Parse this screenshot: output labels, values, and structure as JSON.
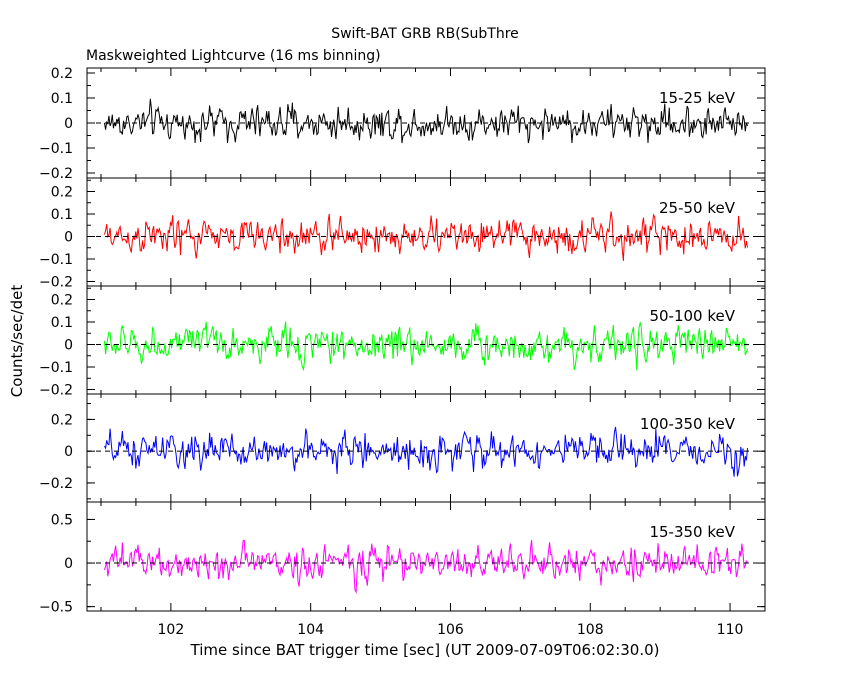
{
  "chart_data": {
    "type": "line",
    "title": "Swift-BAT GRB RB(SubThre",
    "subtitle": "Maskweighted Lightcurve (16 ms binning)",
    "xlabel": "Time since BAT trigger time [sec] (UT 2009-07-09T06:02:30.0)",
    "ylabel": "Counts/sec/det",
    "xlim": [
      100.8,
      110.5
    ],
    "x_ticks": [
      "102",
      "104",
      "106",
      "108",
      "110"
    ],
    "x_start": 101.05,
    "x_end": 110.25,
    "bin_width": 0.016,
    "grid": false,
    "panels": [
      {
        "name": "15-25 keV",
        "color": "#000000",
        "ylim": [
          -0.22,
          0.22
        ],
        "y_ticks": [
          "0.2",
          "0.1",
          "0",
          "−0.1",
          "−0.2"
        ],
        "y_tick_values": [
          0.2,
          0.1,
          0,
          -0.1,
          -0.2
        ],
        "amplitude": 0.07
      },
      {
        "name": "25-50 keV",
        "color": "#ff0000",
        "ylim": [
          -0.22,
          0.26
        ],
        "y_ticks": [
          "0.2",
          "0.1",
          "0",
          "−0.1",
          "−0.2"
        ],
        "y_tick_values": [
          0.2,
          0.1,
          0,
          -0.1,
          -0.2
        ],
        "amplitude": 0.08
      },
      {
        "name": "50-100 keV",
        "color": "#00ff00",
        "ylim": [
          -0.22,
          0.26
        ],
        "y_ticks": [
          "0.2",
          "0.1",
          "0",
          "−0.1",
          "−0.2"
        ],
        "y_tick_values": [
          0.2,
          0.1,
          0,
          -0.1,
          -0.2
        ],
        "amplitude": 0.08
      },
      {
        "name": "100-350 keV",
        "color": "#0000ff",
        "ylim": [
          -0.32,
          0.36
        ],
        "y_ticks": [
          "0.2",
          "0",
          "−0.2"
        ],
        "y_tick_values": [
          0.2,
          0,
          -0.2
        ],
        "amplitude": 0.11
      },
      {
        "name": "15-350 keV",
        "color": "#ff00ff",
        "ylim": [
          -0.55,
          0.7
        ],
        "y_ticks": [
          "0.5",
          "0",
          "−0.5"
        ],
        "y_tick_values": [
          0.5,
          0,
          -0.5
        ],
        "amplitude": 0.2
      }
    ]
  }
}
